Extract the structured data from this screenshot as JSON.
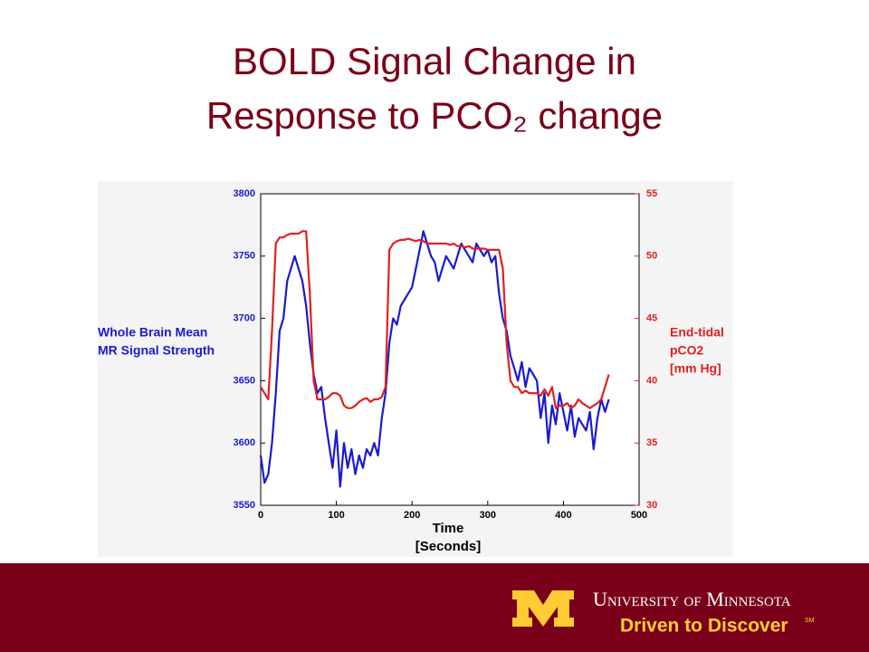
{
  "chart_data": {
    "type": "line",
    "title": "BOLD Signal Change in Response to PCO₂ change",
    "ylabel": [
      "Whole Brain Mean",
      "MR Signal Strength"
    ],
    "y2label": [
      "End-tidal",
      "pCO2",
      "[mm Hg]"
    ],
    "xlabel": [
      "Time",
      "[Seconds]"
    ],
    "xlim": [
      0,
      500
    ],
    "xticks": [
      0,
      100,
      200,
      300,
      400,
      500
    ],
    "ylim": [
      3550,
      3800
    ],
    "yticks": [
      3550,
      3600,
      3650,
      3700,
      3750,
      3800
    ],
    "y2lim": [
      30,
      55
    ],
    "y2ticks": [
      30,
      35,
      40,
      45,
      50,
      55
    ],
    "y_color": "#1a1ad0",
    "y2_color": "#e02020",
    "x": [
      0,
      5,
      10,
      15,
      20,
      25,
      30,
      35,
      40,
      45,
      50,
      55,
      60,
      65,
      70,
      75,
      80,
      85,
      90,
      95,
      100,
      105,
      110,
      115,
      120,
      125,
      130,
      135,
      140,
      145,
      150,
      155,
      160,
      165,
      170,
      175,
      180,
      185,
      190,
      195,
      200,
      205,
      210,
      215,
      220,
      225,
      230,
      235,
      240,
      245,
      250,
      255,
      260,
      265,
      270,
      275,
      280,
      285,
      290,
      295,
      300,
      305,
      310,
      315,
      320,
      325,
      330,
      335,
      340,
      345,
      350,
      355,
      360,
      365,
      370,
      375,
      380,
      385,
      390,
      395,
      400,
      405,
      410,
      415,
      420,
      425,
      430,
      435,
      440,
      445,
      450,
      455,
      460
    ],
    "series": [
      {
        "color": "#1a1ad0",
        "values": [
          3590,
          3568,
          3575,
          3600,
          3640,
          3690,
          3700,
          3730,
          3740,
          3750,
          3740,
          3730,
          3710,
          3680,
          3655,
          3640,
          3645,
          3620,
          3600,
          3580,
          3610,
          3565,
          3600,
          3580,
          3595,
          3575,
          3590,
          3580,
          3595,
          3590,
          3600,
          3590,
          3620,
          3640,
          3680,
          3700,
          3695,
          3710,
          3715,
          3720,
          3725,
          3740,
          3755,
          3770,
          3760,
          3750,
          3745,
          3730,
          3740,
          3750,
          3745,
          3740,
          3750,
          3760,
          3755,
          3750,
          3745,
          3760,
          3755,
          3750,
          3755,
          3745,
          3750,
          3720,
          3700,
          3690,
          3670,
          3660,
          3650,
          3665,
          3645,
          3660,
          3655,
          3650,
          3620,
          3640,
          3600,
          3630,
          3615,
          3640,
          3625,
          3610,
          3630,
          3605,
          3620,
          3615,
          3610,
          3625,
          3595,
          3620,
          3635,
          3625,
          3635
        ]
      },
      {
        "color": "#e02020",
        "axis": "y2",
        "values": [
          39.5,
          39,
          38.5,
          44,
          51,
          51.5,
          51.5,
          51.7,
          51.8,
          51.8,
          51.8,
          52,
          52,
          47,
          40,
          38.5,
          38.5,
          38.5,
          38.7,
          39,
          39,
          38.8,
          38,
          37.8,
          37.8,
          38,
          38.3,
          38.5,
          38.6,
          38.3,
          38.5,
          38.5,
          38.7,
          39.5,
          50.5,
          51,
          51.2,
          51.3,
          51.3,
          51.4,
          51.3,
          51.2,
          51.3,
          51.2,
          51,
          51,
          51,
          51,
          51,
          51,
          50.9,
          51,
          50.8,
          50.8,
          50.7,
          50.8,
          50.6,
          50.6,
          50.6,
          50.6,
          50.5,
          50.5,
          50.5,
          50.5,
          49,
          43,
          40,
          39.5,
          39.5,
          39,
          39.2,
          39,
          39,
          39,
          38.8,
          39.3,
          38.8,
          39.5,
          37.8,
          38,
          38,
          38.2,
          37.8,
          38,
          38.5,
          38.2,
          38,
          37.8,
          38,
          38.2,
          38.5,
          39.5,
          40.5
        ]
      }
    ]
  },
  "footer": {
    "university": "University of Minnesota",
    "slogan": "Driven to Discover",
    "mark": "SM"
  }
}
